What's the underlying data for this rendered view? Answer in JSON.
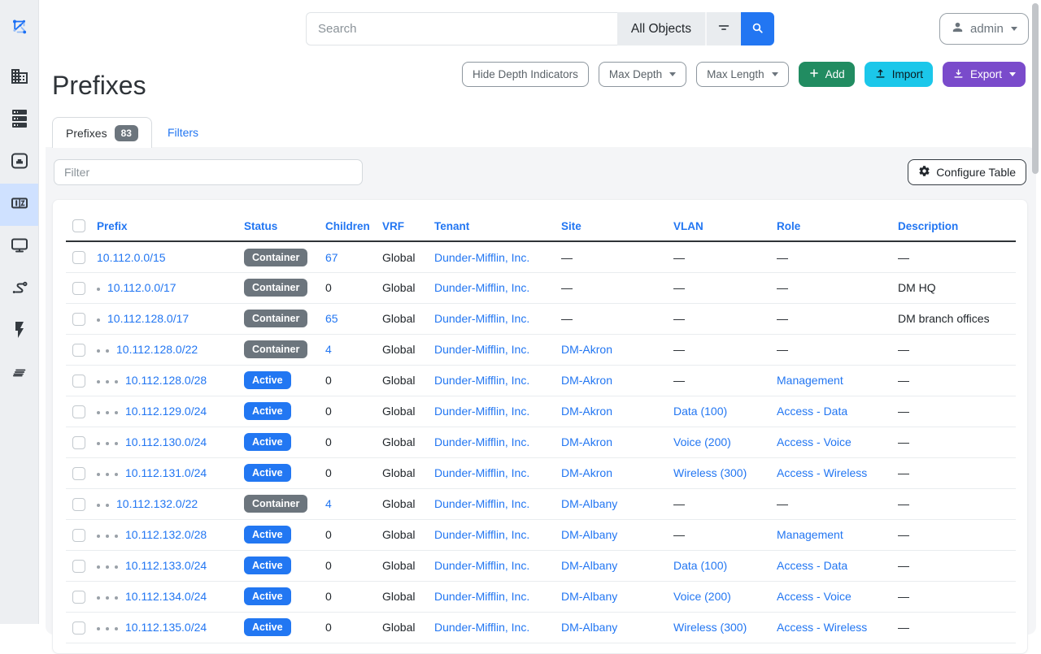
{
  "sidebar": {
    "items": [
      {
        "icon": "netbox-logo",
        "active": false
      },
      {
        "icon": "organization-icon",
        "active": false
      },
      {
        "icon": "devices-icon",
        "active": false
      },
      {
        "icon": "connections-icon",
        "active": false
      },
      {
        "icon": "ipam-icon",
        "active": true
      },
      {
        "icon": "virtualization-icon",
        "active": false
      },
      {
        "icon": "circuits-icon",
        "active": false
      },
      {
        "icon": "power-icon",
        "active": false
      },
      {
        "icon": "customization-icon",
        "active": false
      }
    ]
  },
  "topbar": {
    "search_placeholder": "Search",
    "scope_label": "All Objects",
    "user_label": "admin"
  },
  "page": {
    "title": "Prefixes"
  },
  "toolbar": {
    "hide_depth_label": "Hide Depth Indicators",
    "max_depth_label": "Max Depth",
    "max_length_label": "Max Length",
    "add_label": "Add",
    "import_label": "Import",
    "export_label": "Export"
  },
  "tabs": {
    "prefixes_label": "Prefixes",
    "prefixes_count": "83",
    "filters_label": "Filters"
  },
  "controls": {
    "filter_placeholder": "Filter",
    "configure_label": "Configure Table"
  },
  "colors": {
    "active_badge": "#2277f2",
    "container_badge": "#6c757d",
    "link": "#2276f2",
    "add_button": "#218c61",
    "import_button": "#1bc7ea",
    "export_button": "#7a4bcb",
    "search_button": "#2276f2",
    "sidebar_active_bg": "#cfe1ff"
  },
  "table": {
    "headers": [
      "Prefix",
      "Status",
      "Children",
      "VRF",
      "Tenant",
      "Site",
      "VLAN",
      "Role",
      "Description"
    ],
    "rows": [
      {
        "depth": 0,
        "prefix": "10.112.0.0/15",
        "status": "Container",
        "status_color": "container_badge",
        "children": "67",
        "children_link": true,
        "vrf": "Global",
        "tenant": "Dunder-Mifflin, Inc.",
        "site": "—",
        "vlan": "—",
        "role": "—",
        "description": "—"
      },
      {
        "depth": 1,
        "prefix": "10.112.0.0/17",
        "status": "Container",
        "status_color": "container_badge",
        "children": "0",
        "children_link": false,
        "vrf": "Global",
        "tenant": "Dunder-Mifflin, Inc.",
        "site": "—",
        "vlan": "—",
        "role": "—",
        "description": "DM HQ"
      },
      {
        "depth": 1,
        "prefix": "10.112.128.0/17",
        "status": "Container",
        "status_color": "container_badge",
        "children": "65",
        "children_link": true,
        "vrf": "Global",
        "tenant": "Dunder-Mifflin, Inc.",
        "site": "—",
        "vlan": "—",
        "role": "—",
        "description": "DM branch offices"
      },
      {
        "depth": 2,
        "prefix": "10.112.128.0/22",
        "status": "Container",
        "status_color": "container_badge",
        "children": "4",
        "children_link": true,
        "vrf": "Global",
        "tenant": "Dunder-Mifflin, Inc.",
        "site": "DM-Akron",
        "vlan": "—",
        "role": "—",
        "description": "—"
      },
      {
        "depth": 3,
        "prefix": "10.112.128.0/28",
        "status": "Active",
        "status_color": "active_badge",
        "children": "0",
        "children_link": false,
        "vrf": "Global",
        "tenant": "Dunder-Mifflin, Inc.",
        "site": "DM-Akron",
        "vlan": "—",
        "role": "Management",
        "description": "—"
      },
      {
        "depth": 3,
        "prefix": "10.112.129.0/24",
        "status": "Active",
        "status_color": "active_badge",
        "children": "0",
        "children_link": false,
        "vrf": "Global",
        "tenant": "Dunder-Mifflin, Inc.",
        "site": "DM-Akron",
        "vlan": "Data (100)",
        "role": "Access - Data",
        "description": "—"
      },
      {
        "depth": 3,
        "prefix": "10.112.130.0/24",
        "status": "Active",
        "status_color": "active_badge",
        "children": "0",
        "children_link": false,
        "vrf": "Global",
        "tenant": "Dunder-Mifflin, Inc.",
        "site": "DM-Akron",
        "vlan": "Voice (200)",
        "role": "Access - Voice",
        "description": "—"
      },
      {
        "depth": 3,
        "prefix": "10.112.131.0/24",
        "status": "Active",
        "status_color": "active_badge",
        "children": "0",
        "children_link": false,
        "vrf": "Global",
        "tenant": "Dunder-Mifflin, Inc.",
        "site": "DM-Akron",
        "vlan": "Wireless (300)",
        "role": "Access - Wireless",
        "description": "—"
      },
      {
        "depth": 2,
        "prefix": "10.112.132.0/22",
        "status": "Container",
        "status_color": "container_badge",
        "children": "4",
        "children_link": true,
        "vrf": "Global",
        "tenant": "Dunder-Mifflin, Inc.",
        "site": "DM-Albany",
        "vlan": "—",
        "role": "—",
        "description": "—"
      },
      {
        "depth": 3,
        "prefix": "10.112.132.0/28",
        "status": "Active",
        "status_color": "active_badge",
        "children": "0",
        "children_link": false,
        "vrf": "Global",
        "tenant": "Dunder-Mifflin, Inc.",
        "site": "DM-Albany",
        "vlan": "—",
        "role": "Management",
        "description": "—"
      },
      {
        "depth": 3,
        "prefix": "10.112.133.0/24",
        "status": "Active",
        "status_color": "active_badge",
        "children": "0",
        "children_link": false,
        "vrf": "Global",
        "tenant": "Dunder-Mifflin, Inc.",
        "site": "DM-Albany",
        "vlan": "Data (100)",
        "role": "Access - Data",
        "description": "—"
      },
      {
        "depth": 3,
        "prefix": "10.112.134.0/24",
        "status": "Active",
        "status_color": "active_badge",
        "children": "0",
        "children_link": false,
        "vrf": "Global",
        "tenant": "Dunder-Mifflin, Inc.",
        "site": "DM-Albany",
        "vlan": "Voice (200)",
        "role": "Access - Voice",
        "description": "—"
      },
      {
        "depth": 3,
        "prefix": "10.112.135.0/24",
        "status": "Active",
        "status_color": "active_badge",
        "children": "0",
        "children_link": false,
        "vrf": "Global",
        "tenant": "Dunder-Mifflin, Inc.",
        "site": "DM-Albany",
        "vlan": "Wireless (300)",
        "role": "Access - Wireless",
        "description": "—"
      }
    ]
  }
}
